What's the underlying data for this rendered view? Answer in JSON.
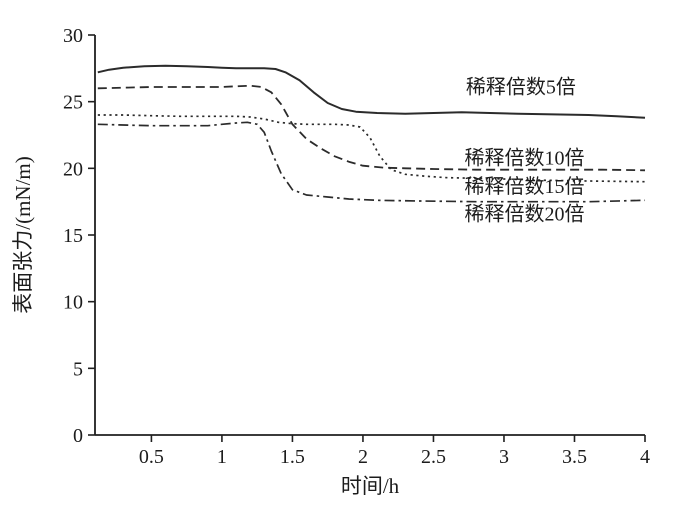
{
  "chart_data": {
    "type": "line",
    "title": "",
    "xlabel": "时间/h",
    "ylabel": "表面张力/(mN/m)",
    "xlim": [
      0.1,
      4.0
    ],
    "ylim": [
      0,
      30
    ],
    "x_ticks": [
      0.5,
      1,
      1.5,
      2,
      2.5,
      3,
      3.5,
      4
    ],
    "y_ticks": [
      0,
      5,
      10,
      15,
      20,
      25,
      30
    ],
    "grid": false,
    "legend_position": "inline-annotations",
    "axis_color": "#1f1f1f",
    "line_color": "#2b2b2b",
    "series": [
      {
        "name": "稀释倍数5倍",
        "style": "solid",
        "stroke_width": 2.0,
        "label_x": 2.73,
        "label_y": 25.6,
        "x": [
          0.12,
          0.2,
          0.3,
          0.45,
          0.6,
          0.75,
          0.9,
          1.0,
          1.1,
          1.2,
          1.3,
          1.38,
          1.45,
          1.55,
          1.65,
          1.75,
          1.85,
          1.95,
          2.1,
          2.3,
          2.5,
          2.7,
          2.9,
          3.1,
          3.3,
          3.6,
          3.8,
          4.0
        ],
        "y": [
          27.2,
          27.4,
          27.55,
          27.65,
          27.7,
          27.65,
          27.6,
          27.55,
          27.5,
          27.5,
          27.5,
          27.45,
          27.2,
          26.6,
          25.7,
          24.9,
          24.45,
          24.25,
          24.15,
          24.1,
          24.15,
          24.2,
          24.15,
          24.1,
          24.05,
          24.0,
          23.9,
          23.8
        ]
      },
      {
        "name": "稀释倍数10倍",
        "style": "dashed",
        "stroke_width": 1.8,
        "label_x": 2.72,
        "label_y": 20.3,
        "x": [
          0.12,
          0.3,
          0.5,
          0.7,
          0.9,
          1.0,
          1.1,
          1.2,
          1.28,
          1.35,
          1.42,
          1.5,
          1.6,
          1.7,
          1.8,
          1.9,
          2.0,
          2.15,
          2.3,
          2.5,
          2.8,
          3.1,
          3.4,
          3.7,
          4.0
        ],
        "y": [
          26.0,
          26.05,
          26.1,
          26.1,
          26.1,
          26.1,
          26.15,
          26.2,
          26.1,
          25.7,
          24.8,
          23.3,
          22.2,
          21.5,
          20.9,
          20.5,
          20.2,
          20.05,
          20.0,
          19.95,
          19.9,
          19.9,
          19.9,
          19.9,
          19.85
        ]
      },
      {
        "name": "稀释倍数15倍",
        "style": "dotted",
        "stroke_width": 1.7,
        "label_x": 2.72,
        "label_y": 18.15,
        "x": [
          0.12,
          0.3,
          0.5,
          0.7,
          0.9,
          1.0,
          1.1,
          1.2,
          1.3,
          1.4,
          1.5,
          1.6,
          1.7,
          1.8,
          1.9,
          1.98,
          2.05,
          2.12,
          2.2,
          2.3,
          2.45,
          2.6,
          2.8,
          3.0,
          3.3,
          3.6,
          4.0
        ],
        "y": [
          24.0,
          24.0,
          23.95,
          23.9,
          23.9,
          23.9,
          23.9,
          23.85,
          23.7,
          23.45,
          23.35,
          23.3,
          23.3,
          23.3,
          23.25,
          23.1,
          22.3,
          20.9,
          19.9,
          19.55,
          19.4,
          19.3,
          19.25,
          19.2,
          19.1,
          19.05,
          19.0
        ]
      },
      {
        "name": "稀释倍数20倍",
        "style": "dashdot",
        "stroke_width": 1.7,
        "label_x": 2.72,
        "label_y": 16.1,
        "x": [
          0.12,
          0.3,
          0.5,
          0.7,
          0.9,
          1.0,
          1.1,
          1.18,
          1.25,
          1.3,
          1.35,
          1.42,
          1.5,
          1.6,
          1.75,
          1.9,
          2.1,
          2.4,
          2.8,
          3.2,
          3.6,
          4.0
        ],
        "y": [
          23.3,
          23.25,
          23.2,
          23.2,
          23.2,
          23.3,
          23.4,
          23.45,
          23.3,
          22.7,
          21.3,
          19.6,
          18.4,
          18.0,
          17.85,
          17.7,
          17.6,
          17.55,
          17.5,
          17.5,
          17.5,
          17.6
        ]
      }
    ]
  }
}
